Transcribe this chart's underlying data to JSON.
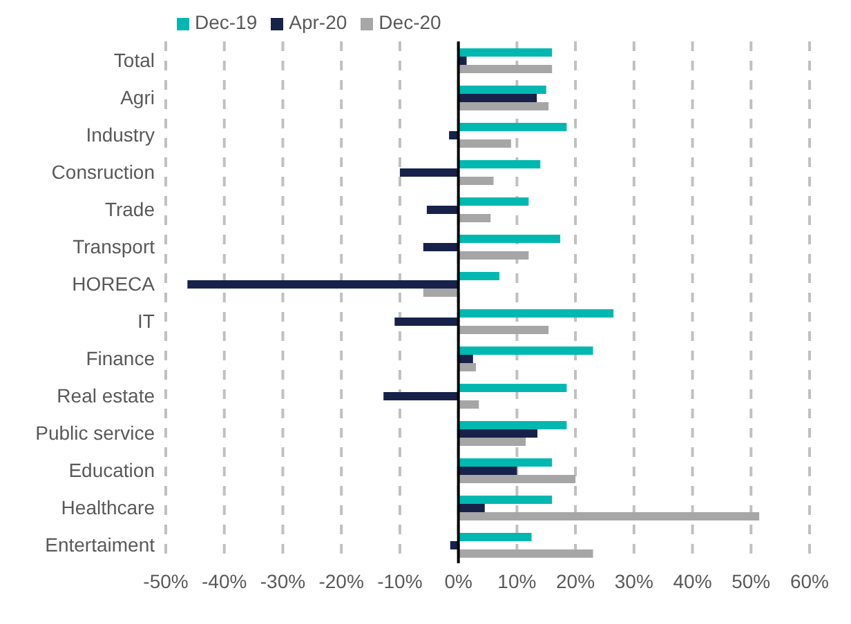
{
  "chart_data": {
    "type": "bar",
    "orientation": "horizontal",
    "categories": [
      "Total",
      "Agri",
      "Industry",
      "Consruction",
      "Trade",
      "Transport",
      "HORECA",
      "IT",
      "Finance",
      "Real estate",
      "Public service",
      "Education",
      "Healthcare",
      "Entertaiment"
    ],
    "series": [
      {
        "name": "Dec-19",
        "color": "#00b8b0",
        "values": [
          16,
          15,
          18.5,
          14,
          12,
          17.4,
          7,
          26.5,
          23,
          18.5,
          18.5,
          16,
          16,
          12.5
        ]
      },
      {
        "name": "Apr-20",
        "color": "#17214a",
        "values": [
          1.4,
          13.4,
          -1.6,
          -10,
          -5.4,
          -6,
          -46.3,
          -10.9,
          2.5,
          -12.8,
          13.5,
          10,
          4.5,
          -1.4
        ]
      },
      {
        "name": "Dec-20",
        "color": "#a6a6a6",
        "values": [
          16,
          15.4,
          9,
          6,
          5.5,
          12,
          -6,
          15.4,
          3,
          3.5,
          11.5,
          20,
          51.4,
          23
        ]
      }
    ],
    "xlim": [
      -50,
      60
    ],
    "xticks": [
      {
        "value": -50,
        "label": "-50%"
      },
      {
        "value": -40,
        "label": "-40%"
      },
      {
        "value": -30,
        "label": "-30%"
      },
      {
        "value": -20,
        "label": "-20%"
      },
      {
        "value": -10,
        "label": "-10%"
      },
      {
        "value": 0,
        "label": "0%"
      },
      {
        "value": 10,
        "label": "10%"
      },
      {
        "value": 20,
        "label": "20%"
      },
      {
        "value": 30,
        "label": "30%"
      },
      {
        "value": 40,
        "label": "40%"
      },
      {
        "value": 50,
        "label": "50%"
      },
      {
        "value": 60,
        "label": "60%"
      }
    ],
    "grid": "x",
    "legend": "top left"
  }
}
